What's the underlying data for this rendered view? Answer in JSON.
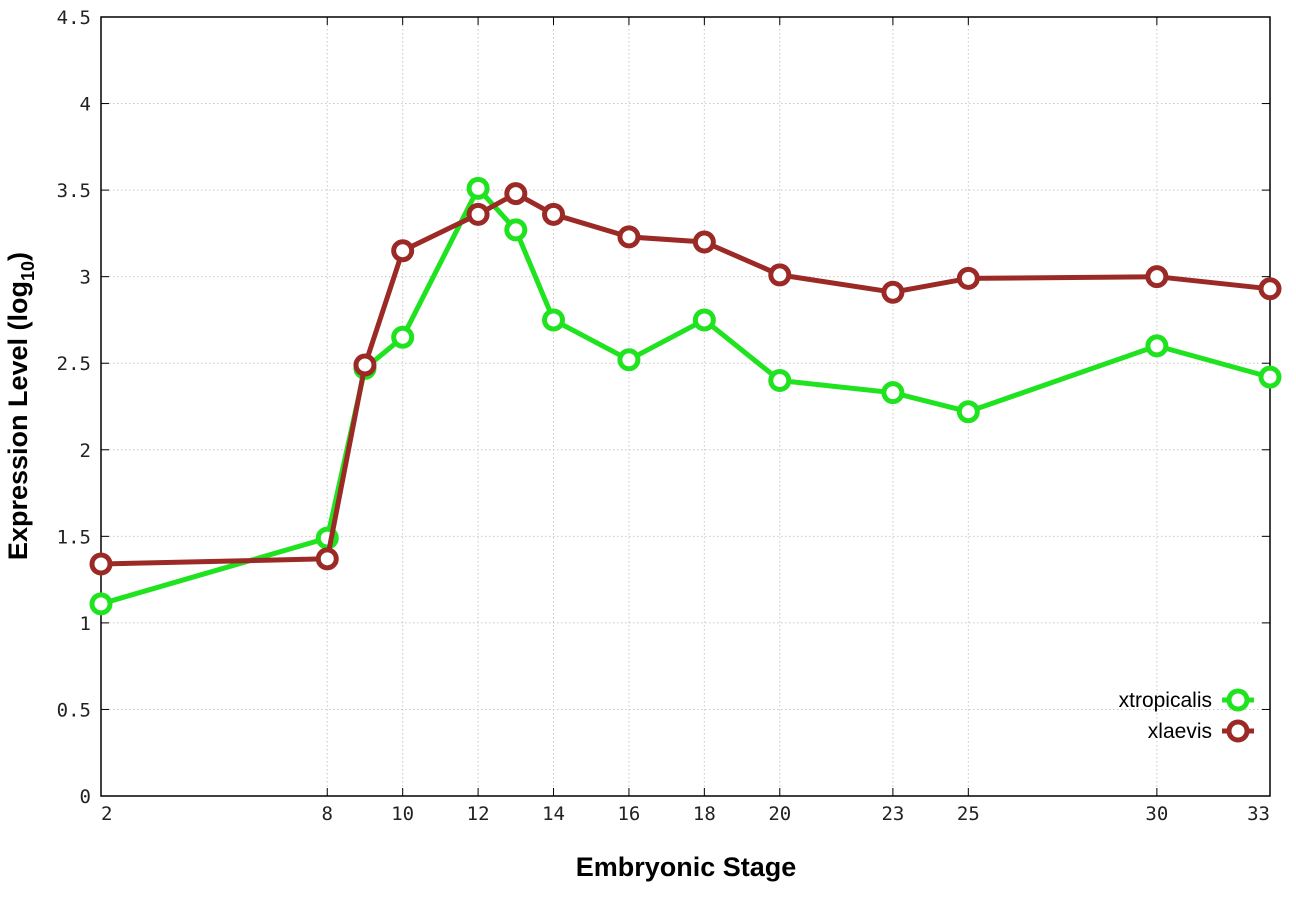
{
  "chart_data": {
    "type": "line",
    "xlabel": "Embryonic Stage",
    "ylabel": {
      "main": "Expression Level (log",
      "sub": "10",
      "close": ")"
    },
    "xlim": [
      2,
      33
    ],
    "ylim": [
      0,
      4.5
    ],
    "x_ticks": [
      2,
      8,
      10,
      12,
      14,
      16,
      18,
      20,
      23,
      25,
      30,
      33
    ],
    "y_ticks": [
      0,
      0.5,
      1,
      1.5,
      2,
      2.5,
      3,
      3.5,
      4,
      4.5
    ],
    "y_tick_labels": [
      "0",
      "0.5",
      "1",
      "1.5",
      "2",
      "2.5",
      "3",
      "3.5",
      "4",
      "4.5"
    ],
    "grid": true,
    "legend_position": "bottom-right",
    "series": [
      {
        "name": "xtropicalis",
        "color": "#1fe31f",
        "x": [
          2,
          8,
          9,
          10,
          12,
          13,
          14,
          16,
          18,
          20,
          23,
          25,
          30,
          33
        ],
        "y": [
          1.11,
          1.49,
          2.47,
          2.65,
          3.51,
          3.27,
          2.75,
          2.52,
          2.75,
          2.4,
          2.33,
          2.22,
          2.6,
          2.42
        ]
      },
      {
        "name": "xlaevis",
        "color": "#9b2a26",
        "x": [
          2,
          8,
          9,
          10,
          12,
          13,
          14,
          16,
          18,
          20,
          23,
          25,
          30,
          33
        ],
        "y": [
          1.34,
          1.37,
          2.49,
          3.15,
          3.36,
          3.48,
          3.36,
          3.23,
          3.2,
          3.01,
          2.91,
          2.99,
          3.0,
          2.93
        ]
      }
    ]
  }
}
